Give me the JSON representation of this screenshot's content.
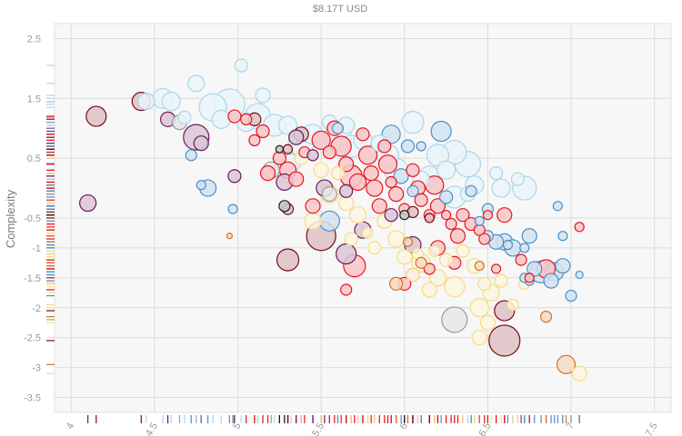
{
  "chart_data": {
    "type": "scatter",
    "title": "$8.17T USD",
    "xlabel": "",
    "ylabel": "Complexity",
    "xlim": [
      3.9,
      7.6
    ],
    "ylim": [
      -3.75,
      2.75
    ],
    "grid": true,
    "legend": "none",
    "x_ticks": [
      "4",
      "4.5",
      "5",
      "5.5",
      "6",
      "6.5",
      "7",
      "7.5"
    ],
    "x_tick_values": [
      4,
      4.5,
      5,
      5.5,
      6,
      6.5,
      7,
      7.5
    ],
    "y_ticks": [
      "2.5",
      "1.5",
      "0.5",
      "-0.5",
      "-1",
      "-1.5",
      "-2",
      "-2.5",
      "-3",
      "-3.5"
    ],
    "y_tick_values": [
      2.5,
      1.5,
      0.5,
      -0.5,
      -1,
      -1.5,
      -2,
      -2.5,
      -3,
      -3.5
    ],
    "y_tick_positions": [
      2.5,
      1.5,
      0.5,
      -0.5,
      -1,
      -1.5,
      -2,
      -2.5,
      -3,
      -3.5
    ],
    "colors": {
      "light_blue": "#aad6e8",
      "steel_blue": "#4a90c8",
      "red": "#e8141e",
      "dark_red": "#7a0a14",
      "purple": "#6a1a5a",
      "yellow": "#f5dc82",
      "orange": "#d8701c",
      "gray": "#9a9a9a",
      "black": "#1a1a1a"
    },
    "series": [
      {
        "color": "#aad6e8",
        "points": [
          [
            4.45,
            1.45,
            9
          ],
          [
            4.55,
            1.5,
            11
          ],
          [
            4.6,
            1.45,
            10
          ],
          [
            4.75,
            1.75,
            9
          ],
          [
            4.85,
            1.35,
            15
          ],
          [
            4.95,
            1.4,
            17
          ],
          [
            5.02,
            2.05,
            7
          ],
          [
            5.05,
            1.1,
            10
          ],
          [
            5.12,
            1.2,
            14
          ],
          [
            5.15,
            1.55,
            8
          ],
          [
            5.22,
            1.05,
            12
          ],
          [
            5.3,
            1.05,
            10
          ],
          [
            5.38,
            0.75,
            14
          ],
          [
            5.45,
            0.9,
            11
          ],
          [
            5.55,
            1.1,
            8
          ],
          [
            5.6,
            0.85,
            15
          ],
          [
            5.68,
            0.7,
            12
          ],
          [
            5.75,
            0.8,
            10
          ],
          [
            5.85,
            0.75,
            9
          ],
          [
            5.9,
            0.55,
            12
          ],
          [
            5.95,
            0.3,
            13
          ],
          [
            6.05,
            1.1,
            12
          ],
          [
            6.15,
            0.2,
            11
          ],
          [
            6.2,
            0.55,
            12
          ],
          [
            6.25,
            0.3,
            10
          ],
          [
            6.3,
            0.6,
            13
          ],
          [
            6.38,
            0.4,
            14
          ],
          [
            6.42,
            0.05,
            10
          ],
          [
            6.3,
            -0.15,
            12
          ],
          [
            6.55,
            0.25,
            7
          ],
          [
            6.58,
            0.0,
            10
          ],
          [
            6.72,
            0.0,
            13
          ],
          [
            6.68,
            0.15,
            7
          ],
          [
            4.68,
            1.18,
            7
          ],
          [
            5.65,
            1.05,
            9
          ],
          [
            5.32,
            0.42,
            10
          ],
          [
            6.1,
            0.15,
            9
          ],
          [
            6.38,
            -0.1,
            8
          ],
          [
            4.9,
            1.15,
            10
          ]
        ]
      },
      {
        "color": "#4a90c8",
        "points": [
          [
            4.72,
            0.55,
            6
          ],
          [
            4.78,
            0.05,
            5
          ],
          [
            4.82,
            0.0,
            9
          ],
          [
            4.97,
            -0.35,
            5
          ],
          [
            5.6,
            1.0,
            6
          ],
          [
            5.92,
            0.9,
            10
          ],
          [
            6.02,
            0.7,
            7
          ],
          [
            6.1,
            0.7,
            5
          ],
          [
            6.22,
            0.95,
            11
          ],
          [
            5.98,
            0.2,
            8
          ],
          [
            6.05,
            -0.05,
            6
          ],
          [
            6.25,
            -0.15,
            7
          ],
          [
            6.4,
            -0.05,
            6
          ],
          [
            6.5,
            -0.35,
            6
          ],
          [
            5.55,
            -0.55,
            11
          ],
          [
            6.45,
            -0.55,
            5
          ],
          [
            6.5,
            -0.8,
            6
          ],
          [
            6.55,
            -0.9,
            8
          ],
          [
            6.6,
            -0.9,
            9
          ],
          [
            6.65,
            -1.0,
            9
          ],
          [
            6.72,
            -1.0,
            5
          ],
          [
            6.75,
            -0.8,
            8
          ],
          [
            6.78,
            -1.35,
            8
          ],
          [
            6.82,
            -1.4,
            12
          ],
          [
            6.9,
            -1.4,
            10
          ],
          [
            6.95,
            -1.3,
            8
          ],
          [
            6.75,
            -1.55,
            5
          ],
          [
            6.88,
            -1.55,
            8
          ],
          [
            7.0,
            -1.8,
            6
          ],
          [
            7.05,
            -1.45,
            4
          ],
          [
            6.95,
            -0.8,
            5
          ],
          [
            6.92,
            -0.3,
            5
          ],
          [
            6.62,
            -0.95,
            5
          ],
          [
            6.72,
            -1.5,
            5
          ]
        ]
      },
      {
        "color": "#e8141e",
        "points": [
          [
            4.98,
            1.2,
            7
          ],
          [
            5.05,
            1.15,
            6
          ],
          [
            5.1,
            0.8,
            6
          ],
          [
            5.15,
            0.95,
            7
          ],
          [
            5.18,
            0.25,
            8
          ],
          [
            5.25,
            0.5,
            7
          ],
          [
            5.3,
            0.3,
            9
          ],
          [
            5.35,
            0.15,
            8
          ],
          [
            5.4,
            0.6,
            6
          ],
          [
            5.45,
            -0.3,
            8
          ],
          [
            5.5,
            0.8,
            10
          ],
          [
            5.55,
            0.6,
            7
          ],
          [
            5.58,
            1.0,
            8
          ],
          [
            5.62,
            0.7,
            11
          ],
          [
            5.65,
            0.4,
            8
          ],
          [
            5.68,
            0.2,
            12
          ],
          [
            5.72,
            0.1,
            9
          ],
          [
            5.75,
            0.9,
            7
          ],
          [
            5.78,
            0.55,
            10
          ],
          [
            5.8,
            0.25,
            8
          ],
          [
            5.82,
            0.0,
            9
          ],
          [
            5.85,
            -0.3,
            8
          ],
          [
            5.88,
            0.7,
            7
          ],
          [
            5.9,
            0.4,
            10
          ],
          [
            5.92,
            0.1,
            6
          ],
          [
            5.95,
            -0.1,
            8
          ],
          [
            6.0,
            -0.35,
            6
          ],
          [
            6.05,
            0.3,
            7
          ],
          [
            6.08,
            0.0,
            8
          ],
          [
            6.1,
            -0.2,
            7
          ],
          [
            6.15,
            -0.45,
            6
          ],
          [
            6.18,
            0.05,
            10
          ],
          [
            6.2,
            -0.3,
            8
          ],
          [
            6.25,
            -0.45,
            5
          ],
          [
            6.28,
            -0.6,
            6
          ],
          [
            6.32,
            -0.8,
            8
          ],
          [
            6.35,
            -0.45,
            7
          ],
          [
            6.4,
            -0.6,
            7
          ],
          [
            6.45,
            -0.7,
            6
          ],
          [
            6.48,
            -0.85,
            6
          ],
          [
            6.5,
            -0.45,
            5
          ],
          [
            6.6,
            -0.45,
            8
          ],
          [
            6.55,
            -1.35,
            5
          ],
          [
            6.7,
            -1.2,
            6
          ],
          [
            6.75,
            -1.5,
            5
          ],
          [
            6.85,
            -1.35,
            10
          ],
          [
            7.05,
            -0.65,
            5
          ],
          [
            5.7,
            -1.3,
            12
          ],
          [
            6.05,
            -1.45,
            7
          ],
          [
            6.2,
            -1.0,
            8
          ],
          [
            6.3,
            -1.25,
            7
          ],
          [
            6.15,
            -1.35,
            6
          ],
          [
            5.65,
            -1.7,
            6
          ],
          [
            6.0,
            -1.6,
            7
          ]
        ]
      },
      {
        "color": "#7a0a14",
        "points": [
          [
            4.15,
            1.2,
            11
          ],
          [
            4.42,
            1.45,
            10
          ],
          [
            5.1,
            1.15,
            7
          ],
          [
            5.3,
            0.65,
            5
          ],
          [
            5.38,
            0.9,
            8
          ],
          [
            5.3,
            -0.35,
            6
          ],
          [
            5.3,
            -1.2,
            12
          ],
          [
            5.5,
            -0.8,
            16
          ],
          [
            6.6,
            -2.05,
            11
          ],
          [
            6.6,
            -2.55,
            17
          ],
          [
            6.05,
            -0.4,
            6
          ],
          [
            6.15,
            -0.5,
            5
          ]
        ]
      },
      {
        "color": "#6a1a5a",
        "points": [
          [
            4.1,
            -0.25,
            9
          ],
          [
            4.58,
            1.15,
            8
          ],
          [
            4.75,
            0.85,
            14
          ],
          [
            4.78,
            0.75,
            8
          ],
          [
            4.98,
            0.2,
            7
          ],
          [
            5.28,
            0.1,
            9
          ],
          [
            5.35,
            0.85,
            8
          ],
          [
            5.52,
            0.0,
            9
          ],
          [
            5.65,
            -0.05,
            7
          ],
          [
            5.65,
            -1.1,
            11
          ],
          [
            5.75,
            -0.7,
            9
          ],
          [
            5.92,
            -0.45,
            7
          ],
          [
            6.05,
            -0.95,
            9
          ],
          [
            5.45,
            0.55,
            6
          ]
        ]
      },
      {
        "color": "#f5dc82",
        "points": [
          [
            5.38,
            0.5,
            7
          ],
          [
            5.45,
            -0.55,
            9
          ],
          [
            5.5,
            0.3,
            8
          ],
          [
            5.55,
            -0.1,
            10
          ],
          [
            5.6,
            0.25,
            7
          ],
          [
            5.65,
            -0.25,
            8
          ],
          [
            5.68,
            -0.85,
            7
          ],
          [
            5.72,
            -0.45,
            9
          ],
          [
            5.78,
            -0.75,
            6
          ],
          [
            5.82,
            -1.0,
            7
          ],
          [
            5.88,
            -0.55,
            8
          ],
          [
            5.95,
            -0.85,
            9
          ],
          [
            6.0,
            -1.15,
            8
          ],
          [
            6.05,
            -1.45,
            7
          ],
          [
            6.1,
            -1.25,
            10
          ],
          [
            6.15,
            -1.7,
            8
          ],
          [
            6.2,
            -1.5,
            9
          ],
          [
            6.25,
            -1.2,
            7
          ],
          [
            6.3,
            -1.65,
            11
          ],
          [
            6.35,
            -1.05,
            7
          ],
          [
            6.42,
            -1.3,
            8
          ],
          [
            6.48,
            -1.6,
            7
          ],
          [
            6.52,
            -1.75,
            9
          ],
          [
            6.58,
            -1.55,
            7
          ],
          [
            6.45,
            -2.0,
            10
          ],
          [
            6.5,
            -2.25,
            8
          ],
          [
            6.65,
            -1.95,
            6
          ],
          [
            6.45,
            -2.5,
            8
          ],
          [
            6.72,
            -1.6,
            6
          ],
          [
            7.05,
            -3.1,
            8
          ],
          [
            6.18,
            -1.05,
            6
          ],
          [
            6.08,
            -1.1,
            6
          ]
        ]
      },
      {
        "color": "#d8701c",
        "points": [
          [
            4.95,
            -0.8,
            3
          ],
          [
            5.95,
            -1.6,
            7
          ],
          [
            6.1,
            -1.25,
            6
          ],
          [
            6.45,
            -1.3,
            5
          ],
          [
            6.85,
            -2.15,
            6
          ],
          [
            6.97,
            -2.95,
            10
          ],
          [
            6.02,
            -0.9,
            5
          ]
        ]
      },
      {
        "color": "#9a9a9a",
        "points": [
          [
            4.65,
            1.1,
            8
          ],
          [
            5.2,
            0.3,
            9
          ],
          [
            6.3,
            -2.2,
            14
          ],
          [
            5.55,
            -0.1,
            8
          ]
        ]
      },
      {
        "color": "#1a1a1a",
        "points": [
          [
            5.28,
            -0.3,
            6
          ],
          [
            6.0,
            -0.45,
            5
          ],
          [
            5.25,
            0.65,
            4
          ]
        ]
      }
    ]
  }
}
